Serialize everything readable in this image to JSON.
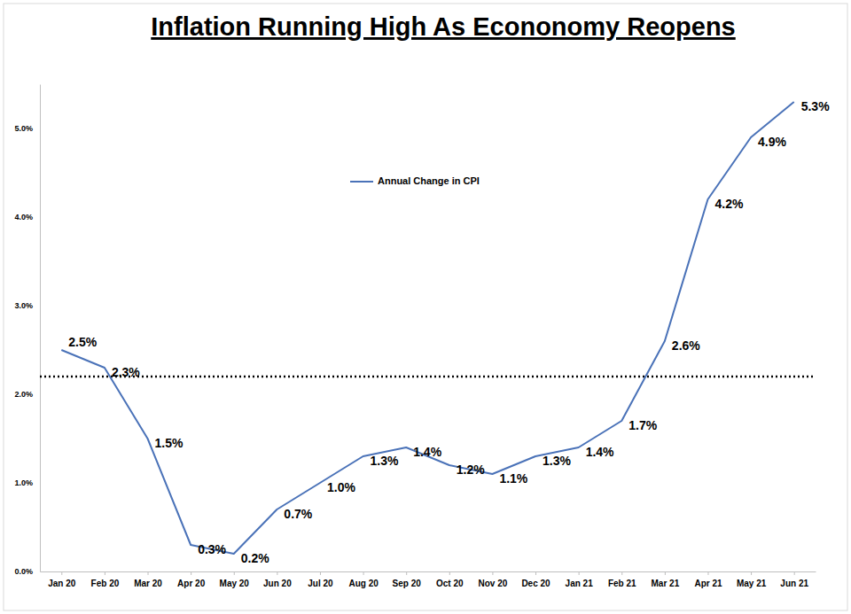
{
  "chart_data": {
    "type": "line",
    "title": "Inflation Running High As Econonomy Reopens",
    "categories": [
      "Jan 20",
      "Feb 20",
      "Mar 20",
      "Apr 20",
      "May 20",
      "Jun 20",
      "Jul 20",
      "Aug 20",
      "Sep 20",
      "Oct 20",
      "Nov 20",
      "Dec 20",
      "Jan 21",
      "Feb 21",
      "Mar 21",
      "Apr 21",
      "May 21",
      "Jun 21"
    ],
    "series": [
      {
        "name": "Annual Change in CPI",
        "color": "#4a72b8",
        "values": [
          2.5,
          2.3,
          1.5,
          0.3,
          0.2,
          0.7,
          1.0,
          1.3,
          1.4,
          1.2,
          1.1,
          1.3,
          1.4,
          1.7,
          2.6,
          4.2,
          4.9,
          5.3
        ],
        "value_labels": [
          "2.5%",
          "2.3%",
          "1.5%",
          "0.3%",
          "0.2%",
          "0.7%",
          "1.0%",
          "1.3%",
          "1.4%",
          "1.2%",
          "1.1%",
          "1.3%",
          "1.4%",
          "1.7%",
          "2.6%",
          "4.2%",
          "4.9%",
          "5.3%"
        ]
      }
    ],
    "reference_line": 2.2,
    "ylim": [
      0,
      5.5
    ],
    "yticks": [
      {
        "value": 0,
        "label": "0.0%"
      },
      {
        "value": 1,
        "label": "1.0%"
      },
      {
        "value": 2,
        "label": "2.0%"
      },
      {
        "value": 3,
        "label": "3.0%"
      },
      {
        "value": 4,
        "label": "4.0%"
      },
      {
        "value": 5,
        "label": "5.0%"
      }
    ],
    "grid": false,
    "legend": "center",
    "data_labels": true
  }
}
